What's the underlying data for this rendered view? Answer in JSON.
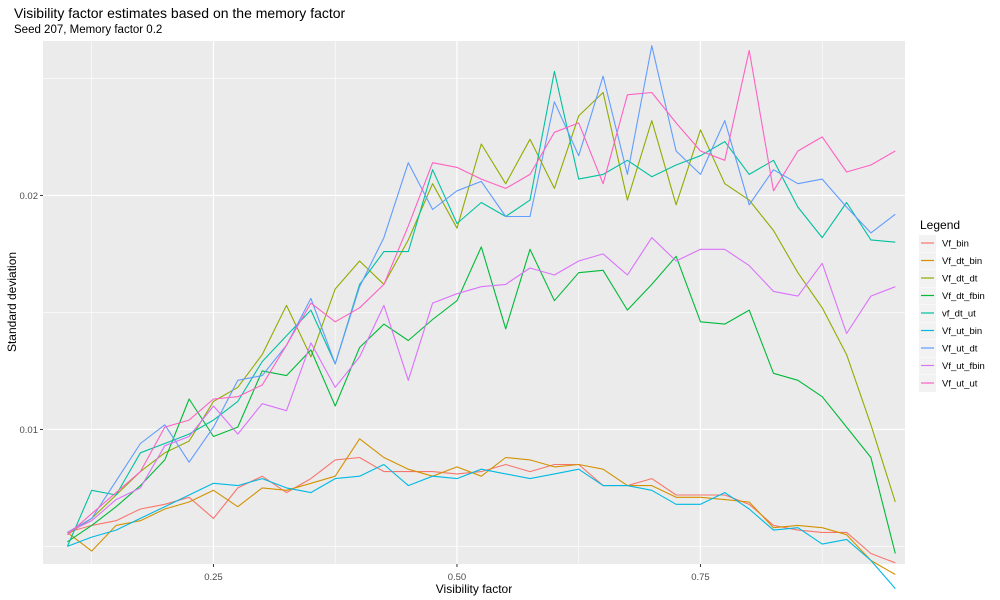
{
  "chart_data": {
    "type": "line",
    "title": "Visibility factor estimates based on the memory factor",
    "subtitle": "Seed 207, Memory factor 0.2",
    "xlabel": "Visibility factor",
    "ylabel": "Standard deviation",
    "xlim": [
      0.075,
      0.96
    ],
    "ylim": [
      0.00425,
      0.0266
    ],
    "x_ticks": [
      0.25,
      0.5,
      0.75
    ],
    "x_tick_labels": [
      "0.25",
      "0.50",
      "0.75"
    ],
    "y_ticks": [
      0.01,
      0.02
    ],
    "y_tick_labels": [
      "0.01",
      "0.02"
    ],
    "grid": true,
    "legend_title": "Legend",
    "legend_position": "right",
    "x": [
      0.1,
      0.125,
      0.15,
      0.175,
      0.2,
      0.225,
      0.25,
      0.275,
      0.3,
      0.325,
      0.35,
      0.375,
      0.4,
      0.425,
      0.45,
      0.475,
      0.5,
      0.525,
      0.55,
      0.575,
      0.6,
      0.625,
      0.65,
      0.675,
      0.7,
      0.725,
      0.75,
      0.775,
      0.8,
      0.825,
      0.85,
      0.875,
      0.9,
      0.925,
      0.95
    ],
    "series": [
      {
        "name": "Vf_bin",
        "color": "#F8766D",
        "values": [
          0.0056,
          0.0059,
          0.0061,
          0.0066,
          0.0068,
          0.0071,
          0.0062,
          0.0075,
          0.008,
          0.0073,
          0.0079,
          0.0087,
          0.0088,
          0.0082,
          0.0082,
          0.0082,
          0.0081,
          0.0082,
          0.0085,
          0.0082,
          0.0085,
          0.0085,
          0.0076,
          0.0076,
          0.0079,
          0.0072,
          0.0072,
          0.0072,
          0.0068,
          0.0059,
          0.0057,
          0.0056,
          0.0056,
          0.0047,
          0.0043
        ]
      },
      {
        "name": "Vf_dt_bin",
        "color": "#D39200",
        "values": [
          0.0056,
          0.0048,
          0.0059,
          0.0061,
          0.0066,
          0.0069,
          0.0074,
          0.0067,
          0.0075,
          0.0074,
          0.0077,
          0.008,
          0.0096,
          0.0088,
          0.0083,
          0.008,
          0.0084,
          0.008,
          0.0088,
          0.0087,
          0.0084,
          0.0085,
          0.0083,
          0.0076,
          0.0076,
          0.0071,
          0.0071,
          0.007,
          0.0069,
          0.0058,
          0.0059,
          0.0058,
          0.0055,
          0.0044,
          0.0038
        ]
      },
      {
        "name": "Vf_dt_dt",
        "color": "#93AA00",
        "values": [
          0.0055,
          0.0062,
          0.0072,
          0.0082,
          0.009,
          0.0095,
          0.0112,
          0.0118,
          0.0132,
          0.0153,
          0.0131,
          0.016,
          0.0172,
          0.0162,
          0.0181,
          0.0205,
          0.0186,
          0.0222,
          0.0205,
          0.0224,
          0.0203,
          0.0234,
          0.0244,
          0.0198,
          0.0232,
          0.0196,
          0.0228,
          0.0205,
          0.0198,
          0.0185,
          0.0167,
          0.0152,
          0.0132,
          0.0102,
          0.0069
        ]
      },
      {
        "name": "Vf_dt_fbin",
        "color": "#00BA38",
        "values": [
          0.0052,
          0.0059,
          0.0067,
          0.0076,
          0.0087,
          0.0113,
          0.0097,
          0.0101,
          0.0125,
          0.0123,
          0.0134,
          0.011,
          0.0135,
          0.0145,
          0.0138,
          0.0147,
          0.0155,
          0.0178,
          0.0143,
          0.0177,
          0.0155,
          0.0167,
          0.0168,
          0.0151,
          0.0162,
          0.0174,
          0.0146,
          0.0145,
          0.0151,
          0.0124,
          0.0121,
          0.0114,
          0.0101,
          0.0088,
          0.0047
        ]
      },
      {
        "name": "vf_dt_ut",
        "color": "#00C19F",
        "values": [
          0.005,
          0.0074,
          0.0072,
          0.009,
          0.0094,
          0.0098,
          0.0104,
          0.0112,
          0.0129,
          0.014,
          0.0151,
          0.0128,
          0.0162,
          0.0176,
          0.0176,
          0.0211,
          0.0188,
          0.0197,
          0.0191,
          0.0198,
          0.0253,
          0.0207,
          0.0209,
          0.0215,
          0.0208,
          0.0213,
          0.0217,
          0.0223,
          0.0209,
          0.0215,
          0.0195,
          0.0182,
          0.0197,
          0.0181,
          0.018
        ]
      },
      {
        "name": "Vf_ut_bin",
        "color": "#00B9E3",
        "values": [
          0.005,
          0.0054,
          0.0057,
          0.0062,
          0.0067,
          0.0072,
          0.0077,
          0.0076,
          0.0079,
          0.0075,
          0.0073,
          0.0079,
          0.008,
          0.0085,
          0.0076,
          0.008,
          0.0079,
          0.0083,
          0.0081,
          0.0079,
          0.0081,
          0.0083,
          0.0076,
          0.0076,
          0.0074,
          0.0068,
          0.0068,
          0.0073,
          0.0066,
          0.0057,
          0.0058,
          0.0051,
          0.0053,
          0.0044,
          0.0032
        ]
      },
      {
        "name": "Vf_ut_dt",
        "color": "#619CFF",
        "values": [
          0.0056,
          0.0062,
          0.0078,
          0.0094,
          0.0102,
          0.0086,
          0.0101,
          0.0121,
          0.0123,
          0.0136,
          0.0156,
          0.0128,
          0.0161,
          0.0182,
          0.0214,
          0.0194,
          0.0202,
          0.0206,
          0.0191,
          0.0191,
          0.024,
          0.0217,
          0.0251,
          0.0209,
          0.0264,
          0.0219,
          0.0209,
          0.0232,
          0.0196,
          0.0211,
          0.0205,
          0.0207,
          0.0195,
          0.0184,
          0.0192
        ]
      },
      {
        "name": "Vf_ut_fbin",
        "color": "#DB72FB",
        "values": [
          0.0056,
          0.0061,
          0.007,
          0.0075,
          0.0093,
          0.0097,
          0.011,
          0.0098,
          0.0111,
          0.0108,
          0.0137,
          0.0118,
          0.0131,
          0.0153,
          0.0121,
          0.0154,
          0.0158,
          0.0161,
          0.0162,
          0.0169,
          0.0166,
          0.0172,
          0.0175,
          0.0166,
          0.0182,
          0.0172,
          0.0177,
          0.0177,
          0.017,
          0.0159,
          0.0157,
          0.0171,
          0.0141,
          0.0157,
          0.0161
        ]
      },
      {
        "name": "Vf_ut_ut",
        "color": "#FF61C3",
        "values": [
          0.0055,
          0.0064,
          0.0073,
          0.0082,
          0.0101,
          0.0104,
          0.0113,
          0.0114,
          0.0119,
          0.0136,
          0.0154,
          0.0146,
          0.0152,
          0.0162,
          0.0187,
          0.0214,
          0.0212,
          0.0207,
          0.0203,
          0.0209,
          0.0227,
          0.0231,
          0.0205,
          0.0243,
          0.0244,
          0.0231,
          0.0219,
          0.0215,
          0.0262,
          0.0202,
          0.0219,
          0.0225,
          0.021,
          0.0213,
          0.0219
        ]
      }
    ]
  }
}
